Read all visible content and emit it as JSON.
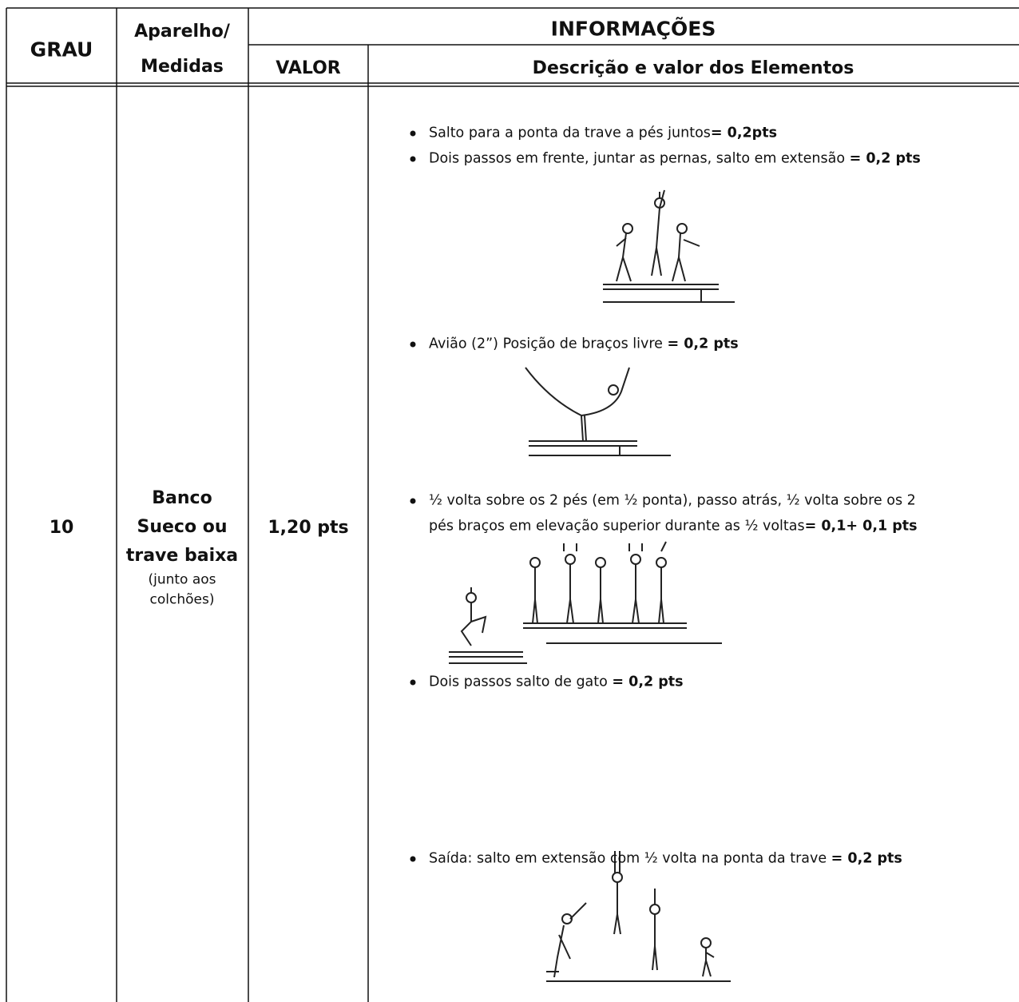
{
  "table": {
    "header": {
      "grau": "GRAU",
      "aparelho": [
        "Aparelho/",
        "Medidas"
      ],
      "group": "INFORMAÇÕES",
      "valor": "VALOR",
      "descricao": "Descrição e valor dos Elementos"
    },
    "row": {
      "grau": "10",
      "aparelho": [
        "Banco",
        "Sueco ou",
        "trave baixa"
      ],
      "note": [
        "(junto aos",
        "colchões)"
      ],
      "valor": "1,20 pts",
      "items": [
        {
          "lines": [
            {
              "text": "Salto para a ponta da trave a pés juntos",
              "bold": "= 0,2pts"
            }
          ]
        },
        {
          "lines": [
            {
              "text": "Dois passos em frente, juntar as pernas, salto em extensão ",
              "bold": "= 0,2 pts"
            }
          ]
        },
        {
          "lines": [
            {
              "text": "Avião (2”) Posição de braços livre ",
              "bold": "= 0,2 pts"
            }
          ]
        },
        {
          "lines": [
            {
              "text": "½ volta sobre os 2 pés (em ½ ponta), passo atrás, ½ volta sobre os 2"
            },
            {
              "text": "pés braços em elevação superior durante as ½ voltas",
              "bold": "= 0,1+ 0,1 pts"
            }
          ]
        },
        {
          "lines": [
            {
              "text": "Dois passos salto de gato ",
              "bold": "= 0,2 pts"
            }
          ]
        },
        {
          "lines": [
            {
              "text": "Saída: salto em extensão com ½ volta na ponta da trave ",
              "bold": "= 0,2 pts"
            }
          ]
        }
      ]
    }
  }
}
